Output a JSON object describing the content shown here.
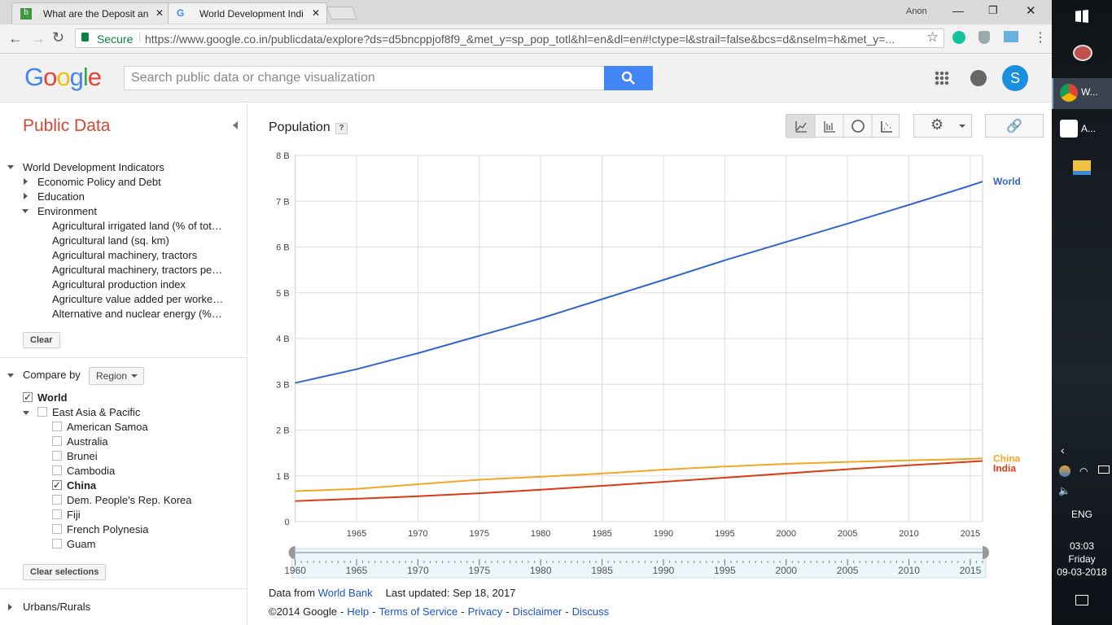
{
  "browser": {
    "tabs": [
      "What are the Deposit an",
      "World Development Indi"
    ],
    "user": "Anon",
    "secure": "Secure",
    "url": "https://www.google.co.in/publicdata/explore?ds=d5bncppjof8f9_&met_y=sp_pop_totl&hl=en&dl=en#!ctype=l&strail=false&bcs=d&nselm=h&met_y=...",
    "avatar": "S"
  },
  "header": {
    "logo": "Google",
    "search_placeholder": "Search public data or change visualization"
  },
  "sidebar": {
    "title": "Public Data",
    "root": "World Development Indicators",
    "categories": [
      "Economic Policy and Debt",
      "Education",
      "Environment"
    ],
    "environment_items": [
      "Agricultural irrigated land (% of tot…",
      "Agricultural land (sq. km)",
      "Agricultural machinery, tractors",
      "Agricultural machinery, tractors pe…",
      "Agricultural production index",
      "Agriculture value added per worke…",
      "Alternative and nuclear energy (%…"
    ],
    "clear": "Clear",
    "compare_by": "Compare by",
    "region": "Region",
    "entities": [
      {
        "label": "World",
        "checked": true,
        "level": 0
      },
      {
        "label": "East Asia & Pacific",
        "checked": false,
        "level": 1
      },
      {
        "label": "American Samoa",
        "checked": false,
        "level": 2
      },
      {
        "label": "Australia",
        "checked": false,
        "level": 2
      },
      {
        "label": "Brunei",
        "checked": false,
        "level": 2
      },
      {
        "label": "Cambodia",
        "checked": false,
        "level": 2
      },
      {
        "label": "China",
        "checked": true,
        "level": 2
      },
      {
        "label": "Dem. People's Rep. Korea",
        "checked": false,
        "level": 2
      },
      {
        "label": "Fiji",
        "checked": false,
        "level": 2
      },
      {
        "label": "French Polynesia",
        "checked": false,
        "level": 2
      },
      {
        "label": "Guam",
        "checked": false,
        "level": 2
      }
    ],
    "clear_selections": "Clear selections",
    "next_group": "Urbans/Rurals"
  },
  "chart_data": {
    "type": "line",
    "title": "Population",
    "help": "?",
    "x": [
      1960,
      1965,
      1970,
      1975,
      1980,
      1985,
      1990,
      1995,
      2000,
      2005,
      2010,
      2015,
      2016
    ],
    "series": [
      {
        "name": "World",
        "color": "#3366cc",
        "values": [
          3.03,
          3.33,
          3.68,
          4.06,
          4.44,
          4.86,
          5.28,
          5.71,
          6.11,
          6.51,
          6.92,
          7.34,
          7.43
        ]
      },
      {
        "name": "China",
        "color": "#f5a623",
        "values": [
          0.667,
          0.715,
          0.818,
          0.916,
          0.981,
          1.051,
          1.135,
          1.205,
          1.263,
          1.304,
          1.338,
          1.371,
          1.379
        ]
      },
      {
        "name": "India",
        "color": "#dc3912",
        "values": [
          0.45,
          0.5,
          0.555,
          0.621,
          0.697,
          0.782,
          0.87,
          0.96,
          1.053,
          1.144,
          1.231,
          1.309,
          1.324
        ]
      }
    ],
    "xlim": [
      1960,
      2016
    ],
    "xticks": [
      1965,
      1970,
      1975,
      1980,
      1985,
      1990,
      1995,
      2000,
      2005,
      2010,
      2015
    ],
    "ylim": [
      0,
      8
    ],
    "yticks": [
      0,
      {
        "value": 1,
        "label": "1 B"
      },
      {
        "value": 2,
        "label": "2 B"
      },
      {
        "value": 3,
        "label": "3 B"
      },
      {
        "value": 4,
        "label": "4 B"
      },
      {
        "value": 5,
        "label": "5 B"
      },
      {
        "value": 6,
        "label": "6 B"
      },
      {
        "value": 7,
        "label": "7 B"
      },
      {
        "value": 8,
        "label": "8 B"
      }
    ],
    "grid": true,
    "slider_ticks": [
      1960,
      1965,
      1970,
      1975,
      1980,
      1985,
      1990,
      1995,
      2000,
      2005,
      2010,
      2015
    ]
  },
  "footer": {
    "data_from": "Data from",
    "source": "World Bank",
    "updated": "Last updated: Sep 18, 2017",
    "copyright": "©2014 Google",
    "separator": "-",
    "links": [
      "Help",
      "Terms of Service",
      "Privacy",
      "Disclaimer",
      "Discuss"
    ]
  },
  "taskbar": {
    "apps": [
      "W...",
      "A..."
    ],
    "lang": "ENG",
    "time": "03:03",
    "day": "Friday",
    "date": "09-03-2018"
  }
}
